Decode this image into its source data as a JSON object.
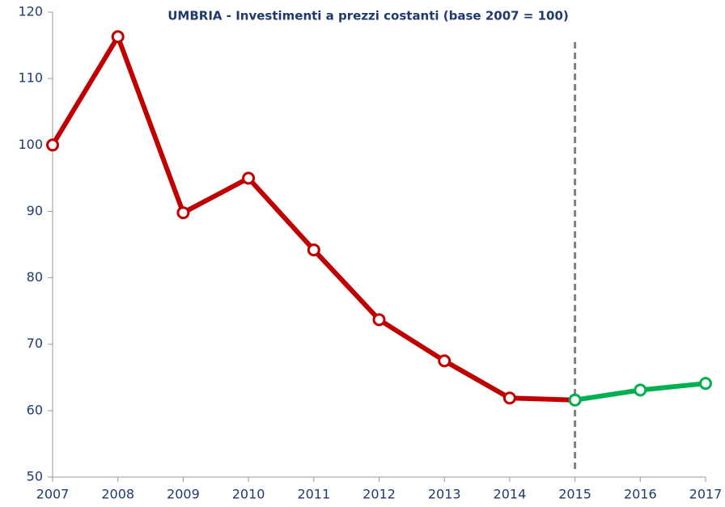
{
  "chart_data": {
    "type": "line",
    "title": "UMBRIA - Investimenti a prezzi costanti (base 2007 = 100)",
    "x": [
      2007,
      2008,
      2009,
      2010,
      2011,
      2012,
      2013,
      2014,
      2015,
      2016,
      2017
    ],
    "series": [
      {
        "color": "#c00000",
        "values": [
          100,
          116.3,
          89.8,
          95,
          84.2,
          73.7,
          67.5,
          61.9,
          61.6,
          null,
          null
        ]
      },
      {
        "color": "#00b050",
        "values": [
          null,
          null,
          null,
          null,
          null,
          null,
          null,
          null,
          61.6,
          63.1,
          64.1
        ]
      }
    ],
    "vline": 2015,
    "xlim": [
      2007,
      2017
    ],
    "xticks": [
      2007,
      2008,
      2009,
      2010,
      2011,
      2012,
      2013,
      2014,
      2015,
      2016,
      2017
    ],
    "ylim": [
      50,
      120
    ],
    "yticks": [
      50,
      60,
      70,
      80,
      90,
      100,
      110,
      120
    ]
  }
}
